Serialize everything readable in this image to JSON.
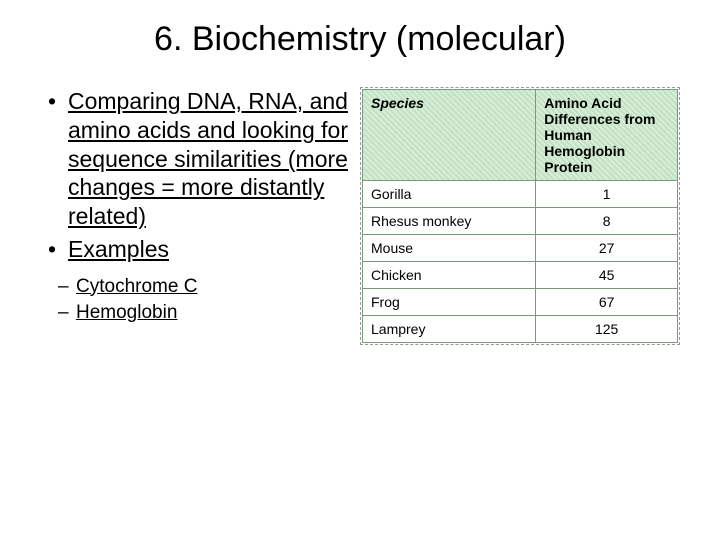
{
  "title": "6. Biochemistry (molecular)",
  "bullets": {
    "main": [
      "Comparing DNA, RNA, and amino acids and looking for sequence similarities (more changes = more distantly related)",
      "Examples"
    ],
    "sub": [
      "Cytochrome C",
      "Hemoglobin"
    ]
  },
  "table": {
    "header": {
      "col1": "Species",
      "col2": "Amino Acid Differences from Human Hemoglobin Protein"
    },
    "rows": [
      {
        "species": "Gorilla",
        "diff": "1"
      },
      {
        "species": "Rhesus monkey",
        "diff": "8"
      },
      {
        "species": "Mouse",
        "diff": "27"
      },
      {
        "species": "Chicken",
        "diff": "45"
      },
      {
        "species": "Frog",
        "diff": "67"
      },
      {
        "species": "Lamprey",
        "diff": "125"
      }
    ],
    "colors": {
      "header_bg_a": "#c2e0c2",
      "header_bg_b": "#d8eed8",
      "border": "#7a9a7a",
      "dash_border": "#999999"
    }
  }
}
